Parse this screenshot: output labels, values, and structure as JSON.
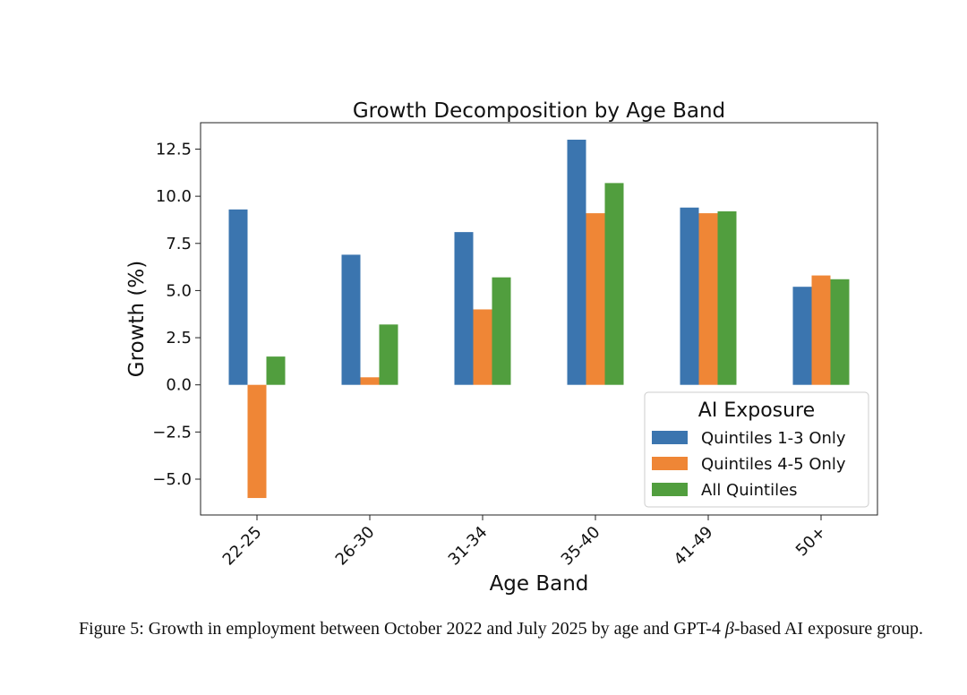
{
  "chart_data": {
    "type": "bar",
    "title": "Growth Decomposition by Age Band",
    "xlabel": "Age Band",
    "ylabel": "Growth (%)",
    "categories": [
      "22-25",
      "26-30",
      "31-34",
      "35-40",
      "41-49",
      "50+"
    ],
    "series": [
      {
        "name": "Quintiles 1-3 Only",
        "color": "#3b75af",
        "values": [
          9.3,
          6.9,
          8.1,
          13.0,
          9.4,
          5.2
        ]
      },
      {
        "name": "Quintiles 4-5 Only",
        "color": "#ef8636",
        "values": [
          -6.0,
          0.4,
          4.0,
          9.1,
          9.1,
          5.8
        ]
      },
      {
        "name": "All Quintiles",
        "color": "#519e3e",
        "values": [
          1.5,
          3.2,
          5.7,
          10.7,
          9.2,
          5.6
        ]
      }
    ],
    "ylim": [
      -6.9,
      13.9
    ],
    "yticks": [
      -5.0,
      -2.5,
      0.0,
      2.5,
      5.0,
      7.5,
      10.0,
      12.5
    ],
    "ytick_labels": [
      "−5.0",
      "−2.5",
      "0.0",
      "2.5",
      "5.0",
      "7.5",
      "10.0",
      "12.5"
    ],
    "legend": {
      "title": "AI Exposure",
      "placement": "lower-right"
    },
    "grid": false
  },
  "caption": {
    "prefix": "Figure 5: Growth in employment between October 2022 and July 2025 by age and GPT-4 ",
    "beta": "β",
    "suffix": "-based AI exposure group."
  }
}
